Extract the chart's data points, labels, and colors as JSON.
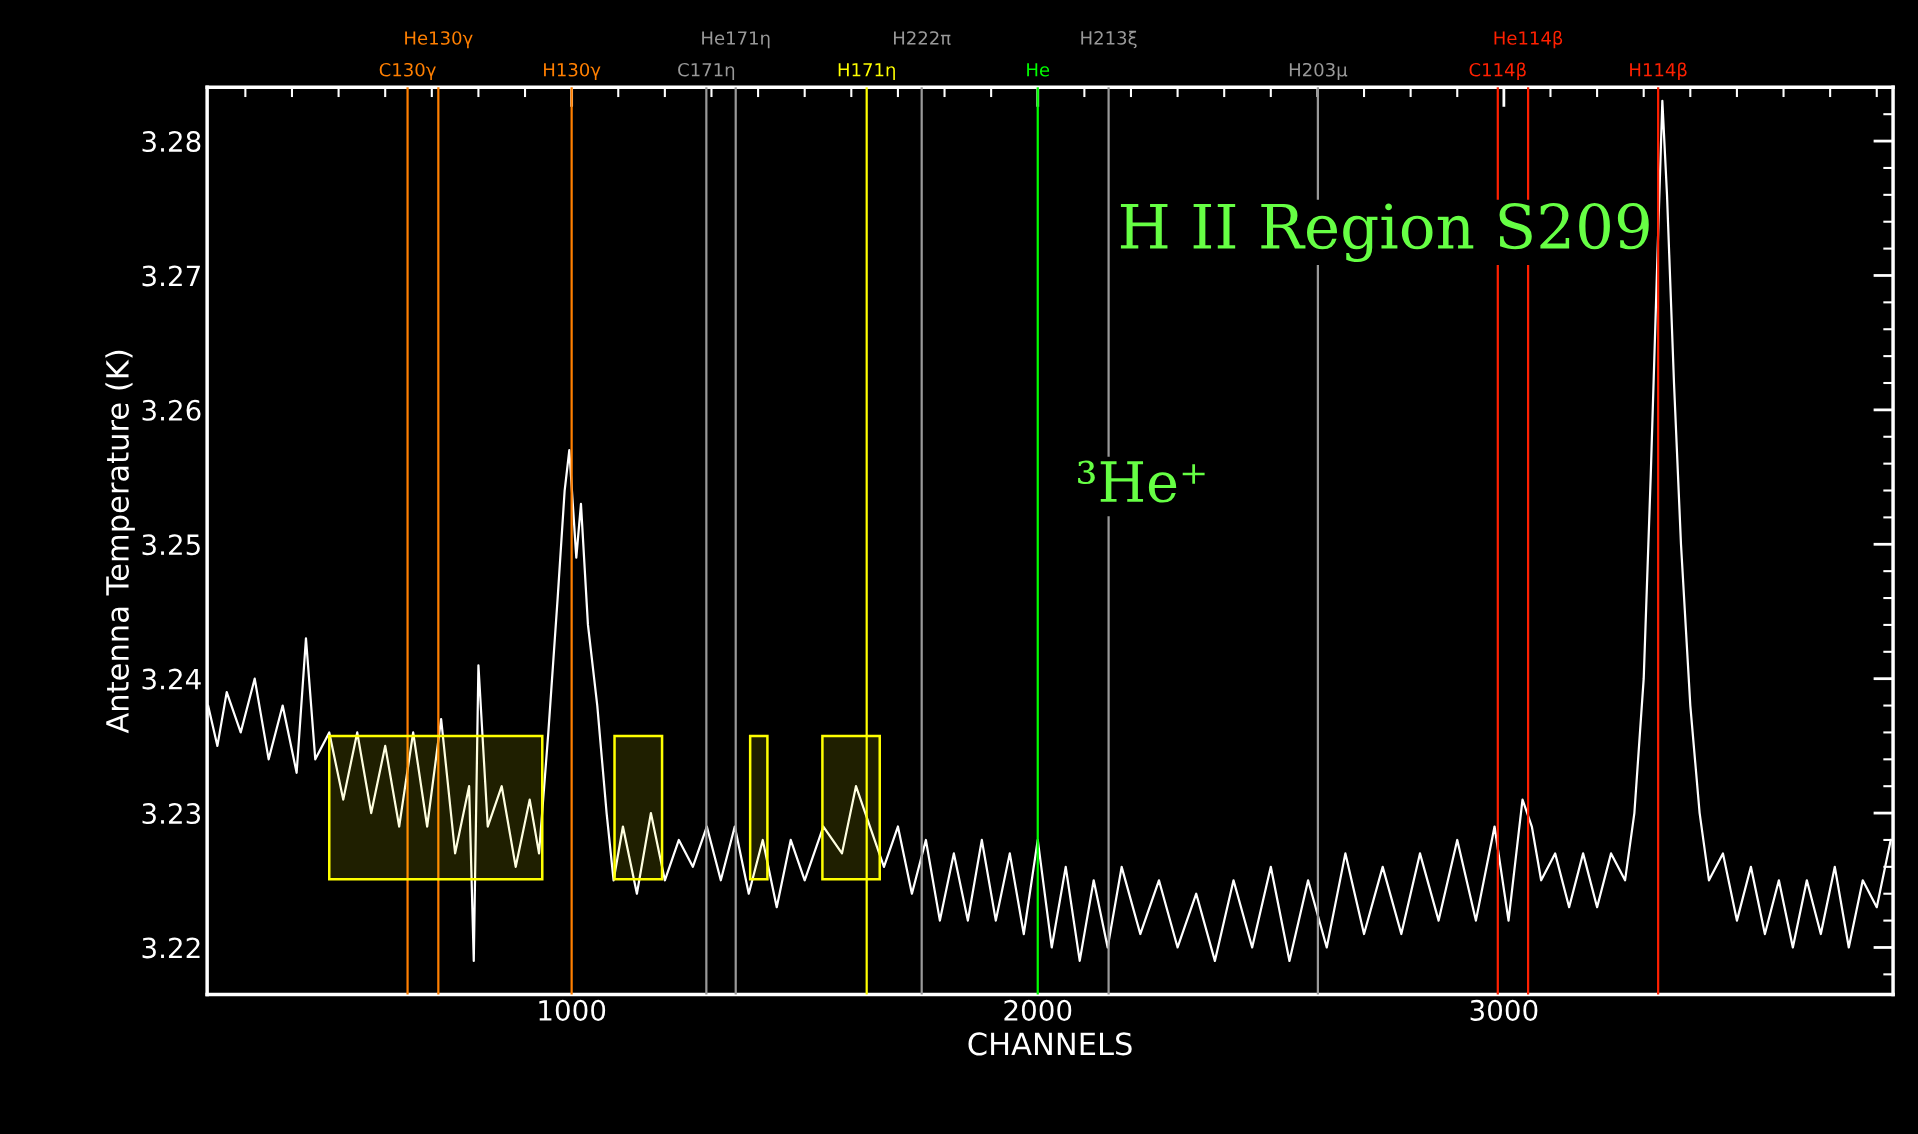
{
  "chart_data": {
    "type": "line",
    "xlabel": "CHANNELS",
    "ylabel": "Antenna Temperature (K)",
    "x": [
      220,
      240,
      260,
      290,
      320,
      350,
      380,
      410,
      430,
      450,
      480,
      510,
      540,
      570,
      600,
      630,
      660,
      690,
      720,
      750,
      780,
      790,
      800,
      820,
      850,
      880,
      910,
      930,
      950,
      970,
      985,
      995,
      1010,
      1020,
      1035,
      1055,
      1075,
      1090,
      1110,
      1140,
      1170,
      1200,
      1230,
      1260,
      1290,
      1320,
      1350,
      1380,
      1410,
      1440,
      1470,
      1500,
      1540,
      1580,
      1610,
      1640,
      1670,
      1700,
      1730,
      1760,
      1790,
      1820,
      1850,
      1880,
      1910,
      1940,
      1970,
      2000,
      2030,
      2060,
      2090,
      2120,
      2150,
      2180,
      2220,
      2260,
      2300,
      2340,
      2380,
      2420,
      2460,
      2500,
      2540,
      2580,
      2620,
      2660,
      2700,
      2740,
      2780,
      2820,
      2860,
      2900,
      2940,
      2980,
      3010,
      3040,
      3060,
      3080,
      3110,
      3140,
      3170,
      3200,
      3230,
      3260,
      3280,
      3300,
      3315,
      3330,
      3340,
      3350,
      3365,
      3380,
      3400,
      3420,
      3440,
      3470,
      3500,
      3530,
      3560,
      3590,
      3620,
      3650,
      3680,
      3710,
      3740,
      3770,
      3800,
      3830
    ],
    "series": [
      {
        "color": "#ffffff",
        "values": [
          3.238,
          3.235,
          3.239,
          3.236,
          3.24,
          3.234,
          3.238,
          3.233,
          3.243,
          3.234,
          3.236,
          3.231,
          3.236,
          3.23,
          3.235,
          3.229,
          3.236,
          3.229,
          3.237,
          3.227,
          3.232,
          3.219,
          3.241,
          3.229,
          3.232,
          3.226,
          3.231,
          3.227,
          3.236,
          3.246,
          3.254,
          3.257,
          3.249,
          3.253,
          3.244,
          3.238,
          3.23,
          3.225,
          3.229,
          3.224,
          3.23,
          3.225,
          3.228,
          3.226,
          3.229,
          3.225,
          3.229,
          3.224,
          3.228,
          3.223,
          3.228,
          3.225,
          3.229,
          3.227,
          3.232,
          3.229,
          3.226,
          3.229,
          3.224,
          3.228,
          3.222,
          3.227,
          3.222,
          3.228,
          3.222,
          3.227,
          3.221,
          3.228,
          3.22,
          3.226,
          3.219,
          3.225,
          3.22,
          3.226,
          3.221,
          3.225,
          3.22,
          3.224,
          3.219,
          3.225,
          3.22,
          3.226,
          3.219,
          3.225,
          3.22,
          3.227,
          3.221,
          3.226,
          3.221,
          3.227,
          3.222,
          3.228,
          3.222,
          3.229,
          3.222,
          3.231,
          3.229,
          3.225,
          3.227,
          3.223,
          3.227,
          3.223,
          3.227,
          3.225,
          3.23,
          3.24,
          3.255,
          3.272,
          3.283,
          3.276,
          3.262,
          3.25,
          3.238,
          3.23,
          3.225,
          3.227,
          3.222,
          3.226,
          3.221,
          3.225,
          3.22,
          3.225,
          3.221,
          3.226,
          3.22,
          3.225,
          3.223,
          3.228
        ]
      }
    ],
    "xlim": [
      218,
      3835
    ],
    "ylim": [
      3.2165,
      3.284
    ],
    "xticks": [
      1000,
      2000,
      3000
    ],
    "yticks": [
      3.22,
      3.23,
      3.24,
      3.25,
      3.26,
      3.27,
      3.28
    ],
    "grid": false,
    "legend": false,
    "marker": "none",
    "line_style": "solid",
    "ref_lines": [
      {
        "axis": "x",
        "value": 648,
        "label": "C130γ",
        "color": "#ff7f00"
      },
      {
        "axis": "x",
        "value": 714,
        "label": "He130γ",
        "color": "#ff7f00"
      },
      {
        "axis": "x",
        "value": 1000,
        "label": "H130γ",
        "color": "#ff7f00"
      },
      {
        "axis": "x",
        "value": 1289,
        "label": "C171η",
        "color": "#999999"
      },
      {
        "axis": "x",
        "value": 1352,
        "label": "He171η",
        "color": "#999999"
      },
      {
        "axis": "x",
        "value": 1633,
        "label": "H171η",
        "color": "#ffff00"
      },
      {
        "axis": "x",
        "value": 1751,
        "label": "H222π",
        "color": "#999999"
      },
      {
        "axis": "x",
        "value": 2000,
        "label": "He",
        "color": "#00ff00"
      },
      {
        "axis": "x",
        "value": 2152,
        "label": "H213ξ",
        "color": "#999999"
      },
      {
        "axis": "x",
        "value": 2601,
        "label": "H203μ",
        "color": "#999999"
      },
      {
        "axis": "x",
        "value": 2987,
        "label": "C114β",
        "color": "#ff2000"
      },
      {
        "axis": "x",
        "value": 3052,
        "label": "He114β",
        "color": "#ff2000"
      },
      {
        "axis": "x",
        "value": 3331,
        "label": "H114β",
        "color": "#ff2000"
      }
    ],
    "bands": [
      {
        "axis": "x",
        "from": 480,
        "to": 937,
        "color": "#ffff00"
      },
      {
        "axis": "x",
        "from": 1092,
        "to": 1194,
        "color": "#ffff00"
      },
      {
        "axis": "x",
        "from": 1383,
        "to": 1420,
        "color": "#ffff00"
      },
      {
        "axis": "x",
        "from": 1538,
        "to": 1661,
        "color": "#ffff00"
      }
    ],
    "annotations": [
      "H II Region S209",
      "³He⁺"
    ]
  }
}
